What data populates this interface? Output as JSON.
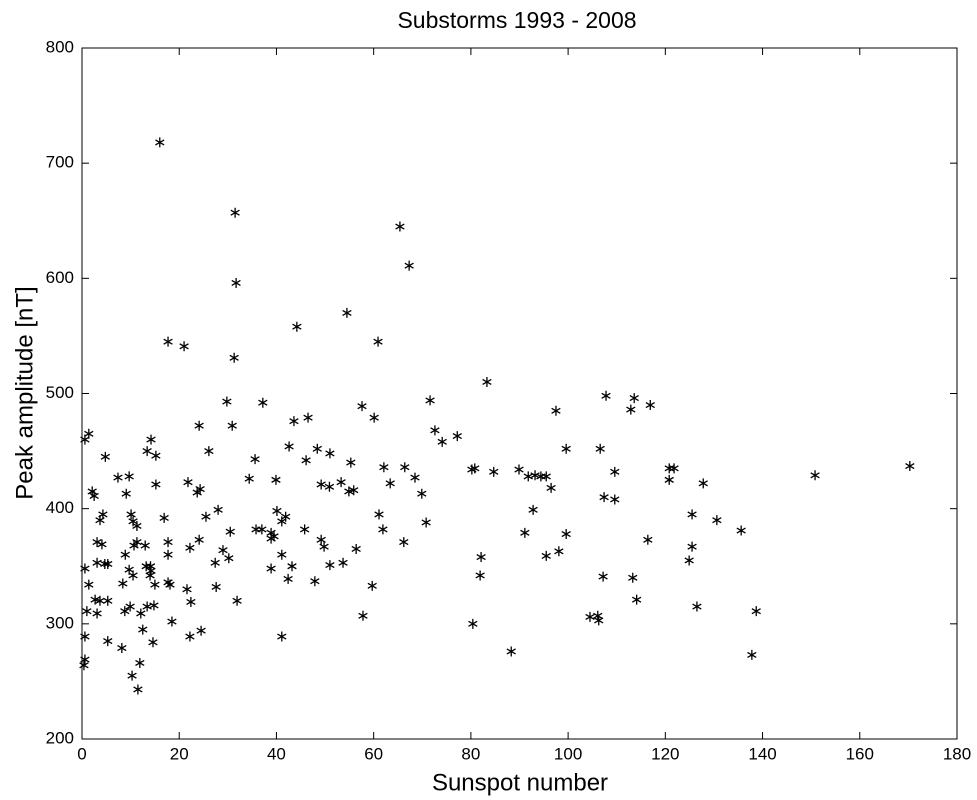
{
  "chart_data": {
    "type": "scatter",
    "title": "Substorms 1993 - 2008",
    "xlabel": "Sunspot number",
    "ylabel": "Peak amplitude [nT]",
    "color": "#000000",
    "marker": "asterisk",
    "xlim": [
      0,
      180
    ],
    "xticks": [
      0,
      20,
      40,
      60,
      80,
      100,
      120,
      140,
      160,
      180
    ],
    "ylim": [
      200,
      800
    ],
    "yticks": [
      200,
      300,
      400,
      500,
      600,
      700,
      800
    ],
    "x": [
      16.0,
      31.5,
      65.4,
      67.3,
      31.7,
      17.7,
      21.0,
      44.2,
      54.5,
      60.9,
      31.3,
      83.3,
      107.8,
      113.6,
      29.8,
      37.2,
      71.6,
      116.9,
      57.6,
      97.5,
      112.9,
      46.5,
      43.6,
      60.1,
      24.1,
      30.9,
      72.6,
      77.2,
      0.6,
      1.4,
      14.2,
      74.1,
      42.6,
      48.4,
      106.6,
      99.6,
      13.4,
      26.1,
      51.0,
      4.8,
      46.1,
      35.6,
      15.2,
      89.9,
      84.7,
      80.2,
      80.8,
      66.4,
      62.1,
      55.3,
      91.8,
      93.2,
      94.4,
      95.5,
      109.6,
      120.8,
      121.8,
      120.8,
      150.8,
      170.3,
      127.8,
      68.5,
      63.4,
      53.3,
      34.4,
      49.2,
      39.9,
      21.8,
      7.4,
      9.7,
      15.2,
      24.3,
      23.7,
      55.9,
      54.9,
      50.9,
      2.1,
      2.5,
      9.1,
      96.5,
      69.9,
      28.0,
      40.1,
      4.3,
      10.1,
      99.6,
      107.4,
      109.6,
      70.8,
      61.1,
      16.9,
      25.5,
      41.9,
      3.7,
      10.5,
      41.1,
      11.3,
      125.5,
      130.6,
      135.6,
      92.8,
      91.1,
      30.5,
      35.8,
      37.0,
      38.9,
      39.5,
      38.9,
      61.9,
      45.8,
      49.2,
      49.8,
      56.4,
      66.2,
      11.3,
      3.1,
      4.1,
      10.7,
      13.0,
      24.1,
      17.7,
      22.2,
      29.0,
      30.2,
      27.4,
      17.7,
      8.9,
      41.1,
      51.0,
      53.7,
      95.5,
      98.1,
      116.4,
      124.9,
      125.5,
      0.6,
      3.1,
      4.7,
      5.3,
      13.2,
      14.1,
      14.2,
      14.0,
      9.7,
      10.5,
      43.2,
      42.4,
      47.9,
      38.9,
      82.1,
      81.9,
      107.2,
      113.3,
      1.4,
      8.4,
      15.0,
      17.7,
      18.1,
      21.6,
      59.7,
      27.6,
      31.9,
      2.7,
      3.7,
      5.3,
      22.4,
      13.4,
      14.8,
      8.8,
      9.9,
      12.1,
      3.1,
      1.0,
      114.1,
      126.5,
      138.7,
      104.5,
      106.1,
      106.3,
      57.8,
      80.4,
      18.5,
      12.5,
      24.5,
      22.2,
      0.6,
      5.3,
      14.6,
      8.2,
      41.1,
      88.3,
      137.8,
      0.6,
      0.4,
      11.9,
      10.3,
      11.5
    ],
    "values": [
      718,
      657,
      645,
      611,
      596,
      545,
      541,
      558,
      570,
      545,
      531,
      510,
      498,
      496,
      493,
      492,
      494,
      490,
      489,
      485,
      486,
      479,
      476,
      479,
      472,
      472,
      468,
      463,
      460,
      465,
      460,
      458,
      454,
      452,
      452,
      452,
      450,
      450,
      448,
      445,
      442,
      443,
      446,
      434,
      432,
      434,
      435,
      436,
      436,
      440,
      428,
      429,
      428,
      428,
      432,
      435,
      435,
      425,
      429,
      437,
      422,
      427,
      422,
      423,
      426,
      421,
      425,
      423,
      427,
      428,
      421,
      417,
      414,
      416,
      415,
      419,
      415,
      411,
      413,
      418,
      413,
      399,
      398,
      395,
      395,
      378,
      410,
      408,
      388,
      395,
      392,
      393,
      393,
      390,
      389,
      389,
      385,
      395,
      390,
      381,
      399,
      379,
      380,
      382,
      382,
      379,
      376,
      374,
      382,
      382,
      373,
      367,
      365,
      371,
      371,
      371,
      369,
      368,
      368,
      373,
      371,
      366,
      364,
      357,
      353,
      360,
      360,
      360,
      351,
      353,
      359,
      363,
      373,
      355,
      367,
      348,
      353,
      352,
      352,
      350,
      350,
      346,
      342,
      347,
      342,
      350,
      339,
      337,
      348,
      358,
      342,
      341,
      340,
      334,
      335,
      334,
      336,
      334,
      330,
      333,
      332,
      320,
      321,
      320,
      320,
      319,
      315,
      316,
      311,
      315,
      309,
      309,
      311,
      321,
      315,
      311,
      306,
      307,
      303,
      307,
      300,
      302,
      295,
      294,
      289,
      289,
      285,
      284,
      279,
      289,
      276,
      273,
      269,
      264,
      266,
      255,
      243
    ]
  }
}
